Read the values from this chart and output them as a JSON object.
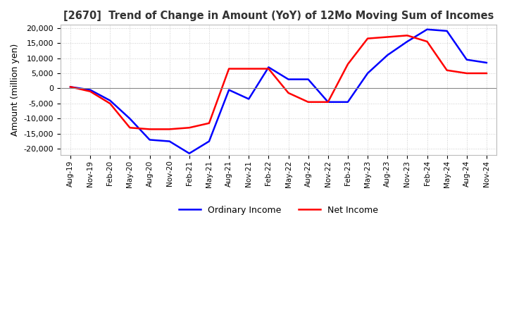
{
  "title": "[2670]  Trend of Change in Amount (YoY) of 12Mo Moving Sum of Incomes",
  "ylabel": "Amount (million yen)",
  "ylim": [
    -22000,
    21000
  ],
  "yticks": [
    -20000,
    -15000,
    -10000,
    -5000,
    0,
    5000,
    10000,
    15000,
    20000
  ],
  "x_labels": [
    "Aug-19",
    "Nov-19",
    "Feb-20",
    "May-20",
    "Aug-20",
    "Nov-20",
    "Feb-21",
    "May-21",
    "Aug-21",
    "Nov-21",
    "Feb-22",
    "May-22",
    "Aug-22",
    "Nov-22",
    "Feb-23",
    "May-23",
    "Aug-23",
    "Nov-23",
    "Feb-24",
    "May-24",
    "Aug-24",
    "Nov-24"
  ],
  "ordinary_income": [
    500,
    -500,
    -4000,
    -10000,
    -17000,
    -17500,
    -21500,
    -17500,
    -500,
    -3500,
    7000,
    3000,
    3000,
    -4500,
    -4500,
    5000,
    11000,
    15500,
    19500,
    19000,
    9500,
    8500
  ],
  "net_income": [
    500,
    -1000,
    -5000,
    -13000,
    -13500,
    -13500,
    -13000,
    -11500,
    6500,
    6500,
    6500,
    -1500,
    -4500,
    -4500,
    8000,
    16500,
    17000,
    17500,
    15500,
    6000,
    5000,
    5000
  ],
  "ordinary_color": "#0000ff",
  "net_color": "#ff0000",
  "background_color": "#ffffff",
  "grid_color": "#cccccc",
  "zero_line_color": "#888888"
}
